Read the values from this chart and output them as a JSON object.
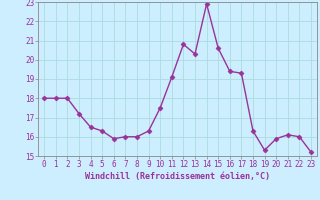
{
  "x": [
    0,
    1,
    2,
    3,
    4,
    5,
    6,
    7,
    8,
    9,
    10,
    11,
    12,
    13,
    14,
    15,
    16,
    17,
    18,
    19,
    20,
    21,
    22,
    23
  ],
  "y": [
    18.0,
    18.0,
    18.0,
    17.2,
    16.5,
    16.3,
    15.9,
    16.0,
    16.0,
    16.3,
    17.5,
    19.1,
    20.8,
    20.3,
    22.9,
    20.6,
    19.4,
    19.3,
    16.3,
    15.3,
    15.9,
    16.1,
    16.0,
    15.2
  ],
  "line_color": "#993399",
  "marker": "D",
  "marker_size": 2.5,
  "line_width": 1.0,
  "bg_color": "#cceeff",
  "grid_color": "#aadddd",
  "xlabel": "Windchill (Refroidissement éolien,°C)",
  "xlabel_color": "#993399",
  "tick_color": "#993399",
  "ylim": [
    15,
    23
  ],
  "xlim": [
    -0.5,
    23.5
  ],
  "yticks": [
    15,
    16,
    17,
    18,
    19,
    20,
    21,
    22,
    23
  ],
  "xticks": [
    0,
    1,
    2,
    3,
    4,
    5,
    6,
    7,
    8,
    9,
    10,
    11,
    12,
    13,
    14,
    15,
    16,
    17,
    18,
    19,
    20,
    21,
    22,
    23
  ],
  "tick_fontsize": 5.5,
  "xlabel_fontsize": 6.0
}
